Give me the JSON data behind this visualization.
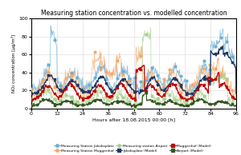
{
  "title": "Measuring station concentration vs. modelled concentration",
  "xlabel": "Hours after 18.08.2015 00:00 [h]",
  "ylabel": "NO₂ concentration [µg/m³]",
  "xlim": [
    0,
    96
  ],
  "ylim": [
    0,
    100
  ],
  "xticks": [
    0,
    12,
    24,
    36,
    48,
    60,
    72,
    84,
    96
  ],
  "yticks": [
    0,
    20,
    40,
    60,
    80,
    100
  ],
  "legend": [
    {
      "label": "Measuring Station Jakobsplatz",
      "color": "#6aafd6",
      "marker": "o"
    },
    {
      "label": "Measuring Station Muggenhof",
      "color": "#f5a86a",
      "marker": "o"
    },
    {
      "label": "Measuring station Airport",
      "color": "#a8d08d",
      "marker": "o"
    },
    {
      "label": "Jakobsplatz (Model)",
      "color": "#1f3864",
      "marker": "s"
    },
    {
      "label": "Muggenhof (Model)",
      "color": "#c00000",
      "marker": "s"
    },
    {
      "label": "Airport (Model)",
      "color": "#375623",
      "marker": "s"
    }
  ],
  "background": "#ffffff",
  "grid_color": "#d8d8d8"
}
